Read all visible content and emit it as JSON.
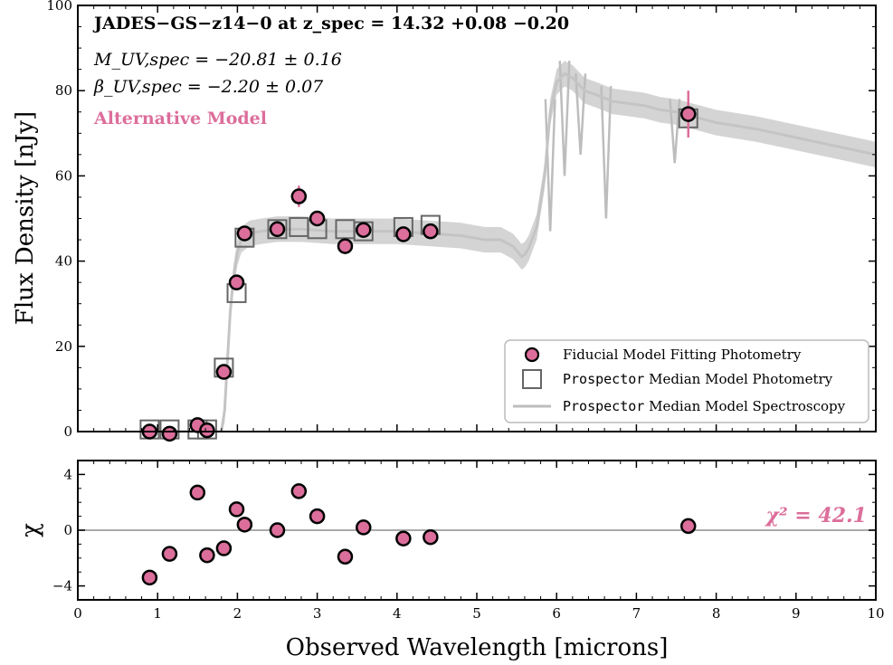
{
  "colors": {
    "marker_fill": "#dc6e9b",
    "marker_edge": "#000000",
    "square_edge": "#666666",
    "spectrum": "#bdbdbd",
    "spectrum_band": "#d4d4d4",
    "zero_line": "#aaaaaa",
    "accent_text": "#dc6e9b"
  },
  "annotations": {
    "title": "JADES−GS−z14−0 at z_spec = 14.32 +0.08 −0.20",
    "muv": "M_UV,spec = −20.81 ± 0.16",
    "beta": "β_UV,spec = −2.20 ± 0.07",
    "model": "Alternative Model",
    "chi2": "χ² = 42.1"
  },
  "legend": {
    "placement": "lower-right",
    "items": [
      {
        "marker": "circle",
        "prefix": "",
        "label": "Fiducial Model Fitting Photometry"
      },
      {
        "marker": "square",
        "prefix": "Prospector",
        "label": " Median Model Photometry"
      },
      {
        "marker": "line",
        "prefix": "Prospector",
        "label": " Median Model Spectroscopy"
      }
    ]
  },
  "chart_data": [
    {
      "panel": "top",
      "type": "scatter",
      "ylabel": "Flux Density [nJy]",
      "xlim": [
        0,
        10
      ],
      "ylim": [
        0,
        100
      ],
      "xticks": [
        0,
        1,
        2,
        3,
        4,
        5,
        6,
        7,
        8,
        9,
        10
      ],
      "yticks": [
        0,
        20,
        40,
        60,
        80,
        100
      ],
      "series": [
        {
          "name": "Fiducial Model Fitting Photometry",
          "x": [
            0.9,
            1.15,
            1.5,
            1.62,
            1.83,
            1.99,
            2.09,
            2.5,
            2.77,
            3.0,
            3.35,
            3.58,
            4.08,
            4.42,
            7.65
          ],
          "y": [
            0.0,
            -0.5,
            1.5,
            0.3,
            14.0,
            35.0,
            46.5,
            47.5,
            55.2,
            50.0,
            43.5,
            47.3,
            46.3,
            47.0,
            74.5
          ],
          "yerr": [
            0.6,
            0.6,
            0.6,
            0.6,
            0.8,
            0.8,
            0.8,
            0.8,
            2.5,
            1.2,
            1.0,
            1.2,
            1.0,
            1.2,
            5.5
          ]
        },
        {
          "name": "Prospector Median Model Photometry",
          "x": [
            0.9,
            1.15,
            1.5,
            1.62,
            1.83,
            1.99,
            2.09,
            2.5,
            2.77,
            3.0,
            3.35,
            3.58,
            4.08,
            4.42,
            7.65
          ],
          "y": [
            0.5,
            0.5,
            0.5,
            0.5,
            15.0,
            32.5,
            45.5,
            47.5,
            48.0,
            47.5,
            47.5,
            47.0,
            48.0,
            48.5,
            73.5
          ]
        },
        {
          "name": "Prospector Median Model Spectroscopy",
          "type": "line",
          "x": [
            0.8,
            1.8,
            1.84,
            1.87,
            1.91,
            1.95,
            2.0,
            2.05,
            2.15,
            2.3,
            2.5,
            2.8,
            3.2,
            3.6,
            4.0,
            4.4,
            4.8,
            5.1,
            5.3,
            5.45,
            5.52,
            5.56,
            5.6,
            5.65,
            5.75,
            5.85,
            5.92,
            6.0,
            6.1,
            6.2,
            6.35,
            6.5,
            6.7,
            6.9,
            7.1,
            7.3,
            7.5,
            7.7,
            8.0,
            8.5,
            9.0,
            9.5,
            10.0
          ],
          "y": [
            0,
            0,
            5,
            15,
            28,
            36,
            42,
            45,
            46.5,
            47,
            47.5,
            47.5,
            47,
            47,
            47,
            46.5,
            46,
            45,
            45,
            43.5,
            42,
            41,
            41.5,
            43,
            48,
            60,
            75,
            82,
            84,
            83,
            80,
            79,
            77.5,
            77,
            76.5,
            75.5,
            75,
            74,
            72.5,
            71,
            69,
            67,
            65
          ],
          "band_width": 3.0,
          "absorption_dips": [
            {
              "x": 5.92,
              "y": 47
            },
            {
              "x": 6.1,
              "y": 60
            },
            {
              "x": 6.3,
              "y": 65
            },
            {
              "x": 6.62,
              "y": 50
            },
            {
              "x": 7.48,
              "y": 63
            }
          ]
        }
      ]
    },
    {
      "panel": "bottom",
      "type": "scatter",
      "xlabel": "Observed Wavelength [microns]",
      "ylabel": "χ",
      "xlim": [
        0,
        10
      ],
      "ylim": [
        -5,
        5
      ],
      "xticks": [
        0,
        1,
        2,
        3,
        4,
        5,
        6,
        7,
        8,
        9,
        10
      ],
      "yticks": [
        -4,
        0,
        4
      ],
      "reference_line": 0,
      "series": [
        {
          "name": "Fiducial Model Fitting Photometry",
          "x": [
            0.9,
            1.15,
            1.5,
            1.62,
            1.83,
            1.99,
            2.09,
            2.5,
            2.77,
            3.0,
            3.35,
            3.58,
            4.08,
            4.42,
            7.65
          ],
          "y": [
            -3.4,
            -1.7,
            2.7,
            -1.8,
            -1.3,
            1.5,
            0.4,
            0.0,
            2.8,
            1.0,
            -1.9,
            0.2,
            -0.6,
            -0.5,
            0.3
          ]
        }
      ]
    }
  ]
}
